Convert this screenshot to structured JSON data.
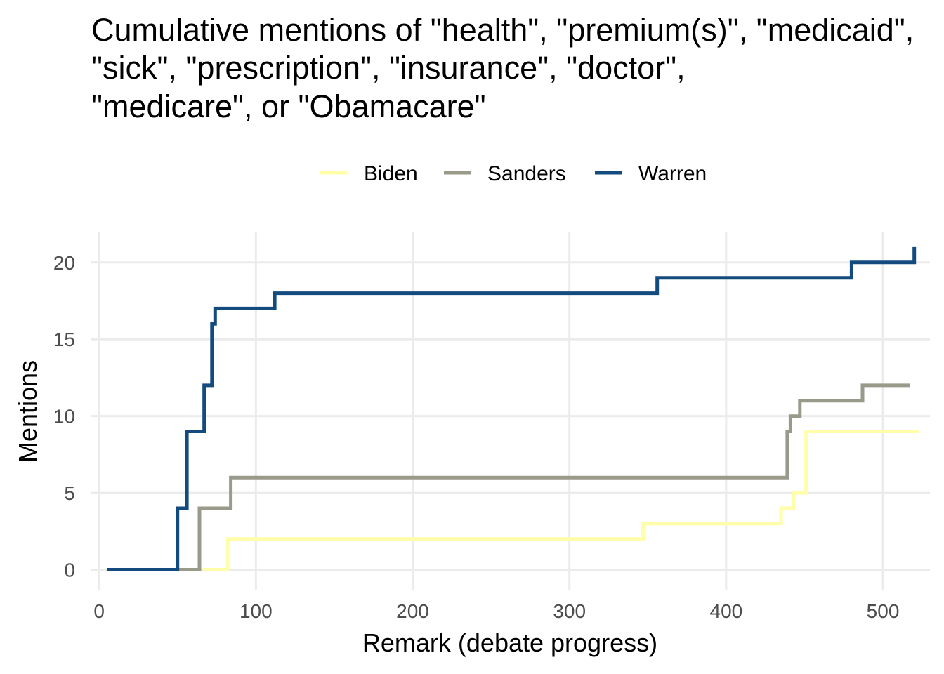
{
  "chart_data": {
    "type": "line",
    "step": true,
    "title_lines": [
      "Cumulative mentions of \"health\", \"premium(s)\", \"medicaid\",",
      "\"sick\", \"prescription\", \"insurance\", \"doctor\",",
      "\"medicare\", or \"Obamacare\""
    ],
    "xlabel": "Remark (debate progress)",
    "ylabel": "Mentions",
    "xlim": [
      -5,
      530
    ],
    "ylim": [
      -1.3,
      22
    ],
    "x_ticks": [
      0,
      100,
      200,
      300,
      400,
      500
    ],
    "y_ticks": [
      0,
      5,
      10,
      15,
      20
    ],
    "grid": true,
    "legend_position": "top",
    "series": [
      {
        "name": "Biden",
        "color": "#FFFFAA",
        "points": [
          [
            66,
            0
          ],
          [
            82,
            2
          ],
          [
            347,
            3
          ],
          [
            435,
            4
          ],
          [
            443,
            5
          ],
          [
            451,
            9
          ],
          [
            523,
            9
          ]
        ]
      },
      {
        "name": "Sanders",
        "color": "#9A9A8A",
        "points": [
          [
            50,
            0
          ],
          [
            64,
            4
          ],
          [
            84,
            6
          ],
          [
            439,
            9
          ],
          [
            441,
            10
          ],
          [
            447,
            11
          ],
          [
            487,
            12
          ],
          [
            517,
            12
          ]
        ]
      },
      {
        "name": "Warren",
        "color": "#134B7E",
        "points": [
          [
            5,
            0
          ],
          [
            50,
            4
          ],
          [
            56,
            9
          ],
          [
            67,
            12
          ],
          [
            72,
            16
          ],
          [
            74,
            17
          ],
          [
            112,
            18
          ],
          [
            356,
            19
          ],
          [
            480,
            20
          ],
          [
            520,
            21
          ]
        ]
      }
    ]
  }
}
